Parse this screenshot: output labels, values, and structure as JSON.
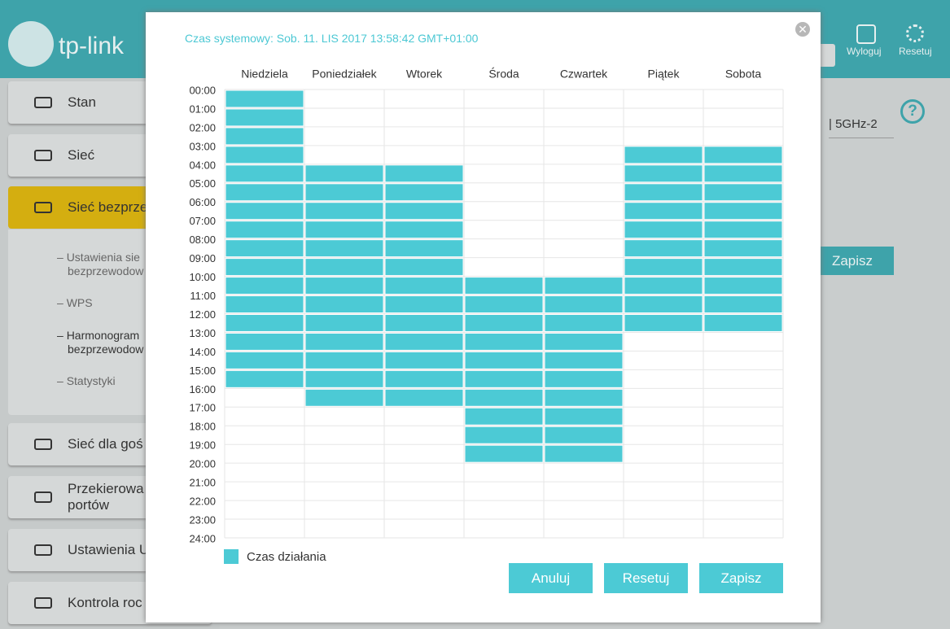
{
  "header": {
    "logo": "tp-link",
    "logout": "Wyloguj",
    "reset": "Resetuj"
  },
  "sidebar": {
    "items": [
      "Stan",
      "Sieć",
      "Sieć bezprze",
      "Sieć dla goś",
      [
        "Przekierowa",
        "portów"
      ],
      "Ustawienia U",
      "Kontrola roc"
    ],
    "submenu": [
      [
        "Ustawienia sie",
        "bezprzewodow"
      ],
      [
        "WPS"
      ],
      [
        "Harmonogram",
        "bezprzewodow"
      ],
      [
        "Statystyki"
      ]
    ]
  },
  "background": {
    "band": "| 5GHz-2",
    "save": "Zapisz",
    "help": "?"
  },
  "dialog": {
    "system_time": "Czas systemowy: Sob. 11. LIS 2017 13:58:42 GMT+01:00",
    "days": [
      "Niedziela",
      "Poniedziałek",
      "Wtorek",
      "Środa",
      "Czwartek",
      "Piątek",
      "Sobota"
    ],
    "hours": [
      "00:00",
      "01:00",
      "02:00",
      "03:00",
      "04:00",
      "05:00",
      "06:00",
      "07:00",
      "08:00",
      "09:00",
      "10:00",
      "11:00",
      "12:00",
      "13:00",
      "14:00",
      "15:00",
      "16:00",
      "17:00",
      "18:00",
      "19:00",
      "20:00",
      "21:00",
      "22:00",
      "23:00",
      "24:00"
    ],
    "schedule": [
      {
        "start": 0,
        "end": 16
      },
      {
        "start": 4,
        "end": 17
      },
      {
        "start": 4,
        "end": 17
      },
      {
        "start": 10,
        "end": 20
      },
      {
        "start": 10,
        "end": 20
      },
      {
        "start": 3,
        "end": 13
      },
      {
        "start": 3,
        "end": 13
      }
    ],
    "legend": "Czas działania",
    "buttons": [
      "Anuluj",
      "Resetuj",
      "Zapisz"
    ]
  }
}
